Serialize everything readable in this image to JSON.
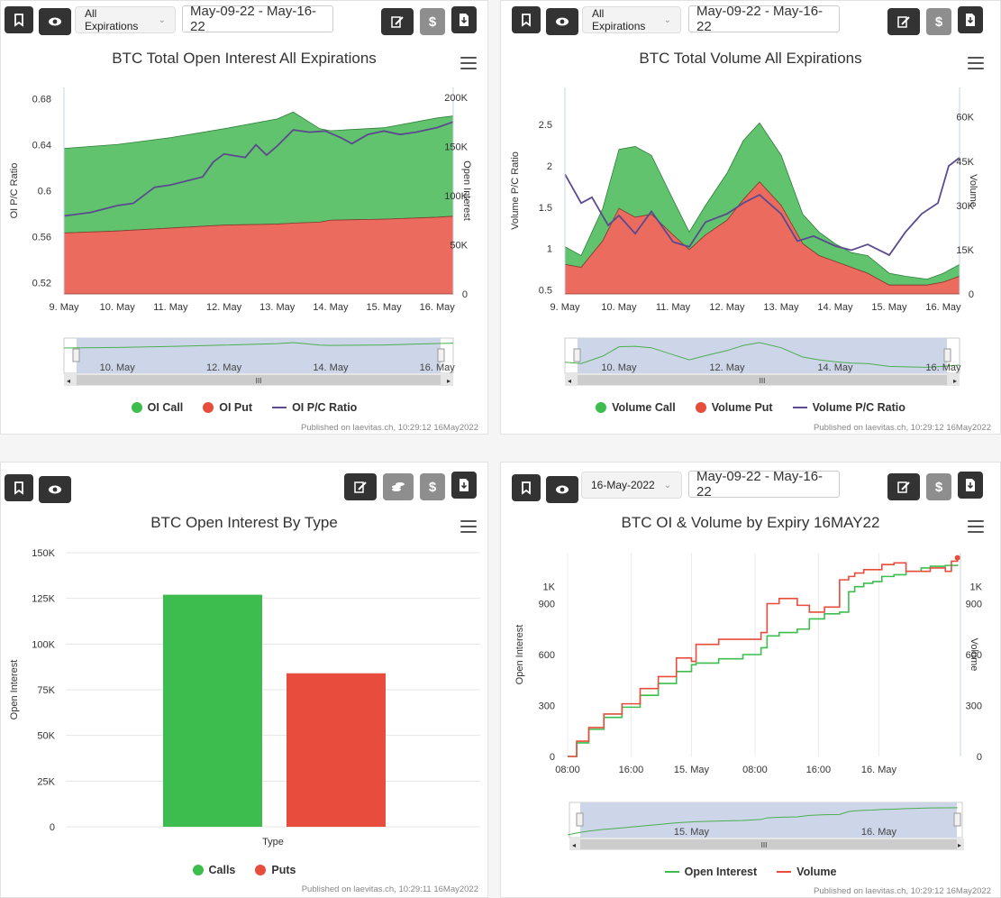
{
  "published_prefix": "Published on laevitas.ch,",
  "icons": [
    "bookmark-icon",
    "eye-icon",
    "edit-icon",
    "dollar-icon",
    "download-icon",
    "coins-icon",
    "menu-icon",
    "chevron-down-icon"
  ],
  "colors": {
    "call": "#3dbd4e",
    "put": "#e74c3c",
    "ratio": "#5b4a8f",
    "call_area": "#61c36d",
    "put_area": "#eb6b5e",
    "nav": "#cdd5e8"
  },
  "panels": [
    {
      "expiry_select": "All Expirations",
      "date_range": "May-09-22 - May-16-22",
      "published": "10:29:12 16May2022",
      "chart_data": {
        "type": "area",
        "title": "BTC Total Open Interest All Expirations",
        "xlabel": "",
        "ylabel": "OI P/C Ratio",
        "y2label": "Open Interest",
        "x_ticks": [
          "9. May",
          "10. May",
          "11. May",
          "12. May",
          "13. May",
          "14. May",
          "15. May",
          "16. May"
        ],
        "y_ticks": [
          "0.52",
          "0.56",
          "0.6",
          "0.64",
          "0.68"
        ],
        "y2_ticks": [
          "0",
          "50K",
          "100K",
          "150K",
          "200K"
        ],
        "ylim": [
          0.51,
          0.69
        ],
        "y2lim": [
          0,
          210000
        ],
        "nav_ticks": [
          "10. May",
          "12. May",
          "14. May",
          "16. May"
        ],
        "series": [
          {
            "name": "OI Call",
            "kind": "stacked-area",
            "x": [
              0,
              1,
              2,
              3,
              4,
              4.3,
              4.8,
              5,
              6,
              7,
              7.3
            ],
            "values": [
              86000,
              88000,
              92000,
              98000,
              107000,
              113000,
              95000,
              91000,
              93000,
              101000,
              102000
            ]
          },
          {
            "name": "OI Put",
            "kind": "stacked-area",
            "x": [
              0,
              1,
              2,
              3,
              4,
              4.3,
              4.8,
              5,
              6,
              7,
              7.3
            ],
            "values": [
              62000,
              64000,
              67000,
              70000,
              71000,
              72000,
              73000,
              75000,
              76000,
              78000,
              79000
            ]
          },
          {
            "name": "OI P/C Ratio",
            "kind": "line",
            "x": [
              0,
              0.5,
              1,
              1.3,
              1.7,
              2,
              2.6,
              2.8,
              3,
              3.4,
              3.6,
              3.8,
              4,
              4.3,
              4.6,
              4.9,
              5.2,
              5.4,
              5.7,
              6,
              6.3,
              6.6,
              7,
              7.3
            ],
            "values": [
              0.578,
              0.581,
              0.587,
              0.589,
              0.603,
              0.605,
              0.612,
              0.625,
              0.632,
              0.629,
              0.64,
              0.631,
              0.639,
              0.653,
              0.651,
              0.652,
              0.646,
              0.641,
              0.649,
              0.652,
              0.649,
              0.651,
              0.655,
              0.66
            ]
          }
        ]
      },
      "legend": [
        {
          "label": "OI Call",
          "shape": "dot",
          "color": "#3dbd4e"
        },
        {
          "label": "OI Put",
          "shape": "dot",
          "color": "#e74c3c"
        },
        {
          "label": "OI P/C Ratio",
          "shape": "line",
          "color": "#5b4a8f"
        }
      ]
    },
    {
      "expiry_select": "All Expirations",
      "date_range": "May-09-22 - May-16-22",
      "published": "10:29:12 16May2022",
      "chart_data": {
        "type": "area",
        "title": "BTC Total Volume All Expirations",
        "ylabel": "Volume P/C Ratio",
        "y2label": "Volume",
        "x_ticks": [
          "9. May",
          "10. May",
          "11. May",
          "12. May",
          "13. May",
          "14. May",
          "15. May",
          "16. May"
        ],
        "y_ticks": [
          "0.5",
          "1",
          "1.5",
          "2",
          "2.5"
        ],
        "y2_ticks": [
          "0",
          "15K",
          "30K",
          "45K",
          "60K"
        ],
        "ylim": [
          0.45,
          2.95
        ],
        "y2lim": [
          0,
          70000
        ],
        "nav_ticks": [
          "10. May",
          "12. May",
          "14. May",
          "16. May"
        ],
        "series": [
          {
            "name": "Volume Call",
            "kind": "stacked-area",
            "x": [
              0,
              0.3,
              0.7,
              1,
              1.3,
              1.6,
              2,
              2.3,
              2.6,
              3,
              3.3,
              3.6,
              4,
              4.4,
              4.7,
              5,
              5.3,
              5.6,
              6,
              6.3,
              6.7,
              7,
              7.3
            ],
            "values": [
              6000,
              4000,
              11000,
              20000,
              24000,
              20000,
              12000,
              6000,
              10000,
              16000,
              20000,
              20000,
              17000,
              10000,
              8000,
              6000,
              5000,
              6000,
              4000,
              3000,
              2000,
              3000,
              4000
            ]
          },
          {
            "name": "Volume Put",
            "kind": "stacked-area",
            "x": [
              0,
              0.3,
              0.7,
              1,
              1.3,
              1.6,
              2,
              2.3,
              2.6,
              3,
              3.3,
              3.6,
              4,
              4.4,
              4.7,
              5,
              5.3,
              5.6,
              6,
              6.3,
              6.7,
              7,
              7.3
            ],
            "values": [
              10000,
              9000,
              18000,
              29000,
              26000,
              27000,
              20000,
              15000,
              20000,
              25000,
              32000,
              38000,
              30000,
              17000,
              13000,
              11000,
              9000,
              7000,
              3000,
              3000,
              3000,
              4000,
              6000
            ]
          },
          {
            "name": "Volume P/C Ratio",
            "kind": "line",
            "x": [
              0,
              0.3,
              0.5,
              0.8,
              1,
              1.3,
              1.6,
              2,
              2.3,
              2.6,
              3,
              3.3,
              3.6,
              4,
              4.3,
              4.6,
              5,
              5.3,
              5.6,
              6,
              6.3,
              6.6,
              6.9,
              7.1,
              7.3
            ],
            "values": [
              1.9,
              1.55,
              1.62,
              1.28,
              1.4,
              1.18,
              1.45,
              1.08,
              1.02,
              1.32,
              1.42,
              1.55,
              1.65,
              1.42,
              1.09,
              1.15,
              1.03,
              0.98,
              1.05,
              0.92,
              1.2,
              1.42,
              1.55,
              2.0,
              2.1
            ]
          }
        ]
      },
      "legend": [
        {
          "label": "Volume Call",
          "shape": "dot",
          "color": "#3dbd4e"
        },
        {
          "label": "Volume Put",
          "shape": "dot",
          "color": "#e74c3c"
        },
        {
          "label": "Volume P/C Ratio",
          "shape": "line",
          "color": "#5b4a8f"
        }
      ]
    },
    {
      "published": "10:29:11 16May2022",
      "chart_data": {
        "type": "bar",
        "title": "BTC Open Interest By Type",
        "xlabel": "Type",
        "ylabel": "Open Interest",
        "categories": [
          "Calls",
          "Puts"
        ],
        "values": [
          127000,
          84000
        ],
        "y_ticks": [
          "0",
          "25K",
          "50K",
          "75K",
          "100K",
          "125K",
          "150K"
        ],
        "ylim": [
          0,
          150000
        ]
      },
      "legend": [
        {
          "label": "Calls",
          "shape": "dot",
          "color": "#3dbd4e"
        },
        {
          "label": "Puts",
          "shape": "dot",
          "color": "#e74c3c"
        }
      ]
    },
    {
      "expiry_select": "16-May-2022",
      "date_range": "May-09-22 - May-16-22",
      "published": "10:29:12 16May2022",
      "chart_data": {
        "type": "line",
        "title": "BTC OI & Volume by Expiry 16MAY22",
        "ylabel": "Open Interest",
        "y2label": "Volume",
        "x_ticks": [
          "08:00",
          "16:00",
          "15. May",
          "08:00",
          "16:00",
          "16. May"
        ],
        "y_ticks": [
          "0",
          "300",
          "600",
          "900",
          "1K"
        ],
        "y2_ticks": [
          "0",
          "300",
          "600",
          "900",
          "1K"
        ],
        "ylim": [
          0,
          1200
        ],
        "nav_ticks": [
          "15. May",
          "16. May"
        ],
        "series": [
          {
            "name": "Open Interest",
            "x": [
              0,
              0.3,
              0.7,
              1.2,
              1.8,
              2.4,
              3.0,
              3.6,
              4.1,
              4.25,
              5.0,
              5.8,
              6.4,
              6.6,
              7.0,
              7.6,
              8.0,
              8.5,
              9.0,
              9.3,
              9.5,
              9.8,
              10.1,
              10.4,
              10.8,
              11.2,
              11.7,
              12.0,
              12.5,
              12.9
            ],
            "values": [
              0,
              80,
              160,
              230,
              290,
              360,
              430,
              500,
              540,
              550,
              575,
              600,
              640,
              710,
              730,
              750,
              810,
              840,
              850,
              970,
              1000,
              1020,
              1030,
              1060,
              1070,
              1090,
              1110,
              1120,
              1125,
              1130
            ]
          },
          {
            "name": "Volume",
            "x": [
              0,
              0.3,
              0.7,
              1.2,
              1.8,
              2.4,
              3.0,
              3.6,
              4.1,
              4.25,
              5.0,
              5.8,
              6.4,
              6.6,
              7.0,
              7.6,
              8.0,
              8.5,
              9.0,
              9.3,
              9.5,
              9.8,
              10.1,
              10.4,
              10.8,
              11.2,
              11.7,
              12.0,
              12.5,
              12.7,
              12.9
            ],
            "values": [
              0,
              90,
              170,
              250,
              310,
              400,
              470,
              580,
              560,
              660,
              690,
              690,
              730,
              900,
              930,
              890,
              850,
              880,
              1040,
              1060,
              1080,
              1100,
              1100,
              1130,
              1140,
              1090,
              1090,
              1110,
              1090,
              1150,
              1170
            ]
          }
        ]
      },
      "legend": [
        {
          "label": "Open Interest",
          "shape": "line",
          "color": "#3dbd4e"
        },
        {
          "label": "Volume",
          "shape": "line",
          "color": "#e74c3c"
        }
      ]
    }
  ]
}
